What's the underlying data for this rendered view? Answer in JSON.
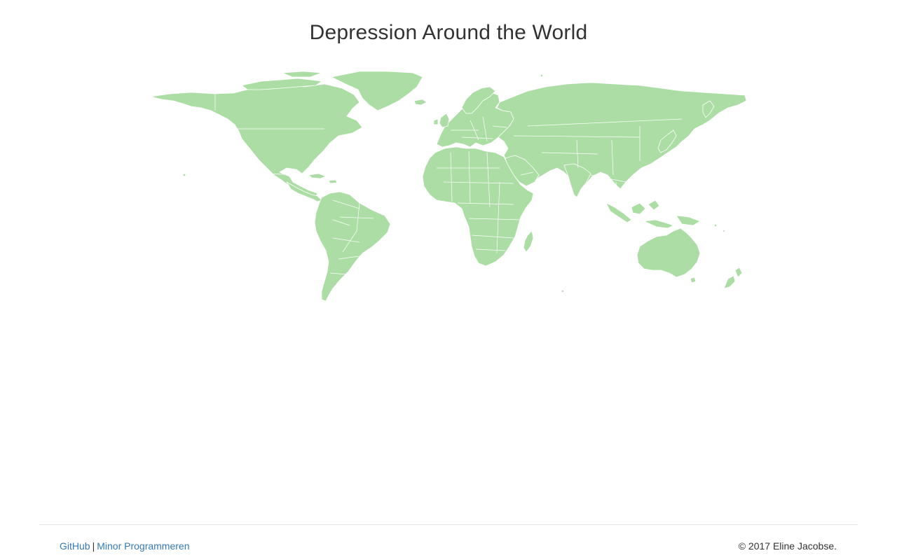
{
  "page": {
    "title": "Depression Around the World"
  },
  "map": {
    "land_color": "#abdda4",
    "border_color": "#ffffff",
    "projection": "equirectangular",
    "regions": [
      "North America",
      "Greenland",
      "South America",
      "Europe",
      "Africa",
      "Asia",
      "Australia",
      "Madagascar",
      "Japan",
      "New Zealand"
    ]
  },
  "footer": {
    "link_github": "GitHub",
    "separator": "|",
    "link_minor": "Minor Programmeren",
    "copyright": "© 2017 Eline Jacobse.",
    "link_color": "#337ab7"
  }
}
